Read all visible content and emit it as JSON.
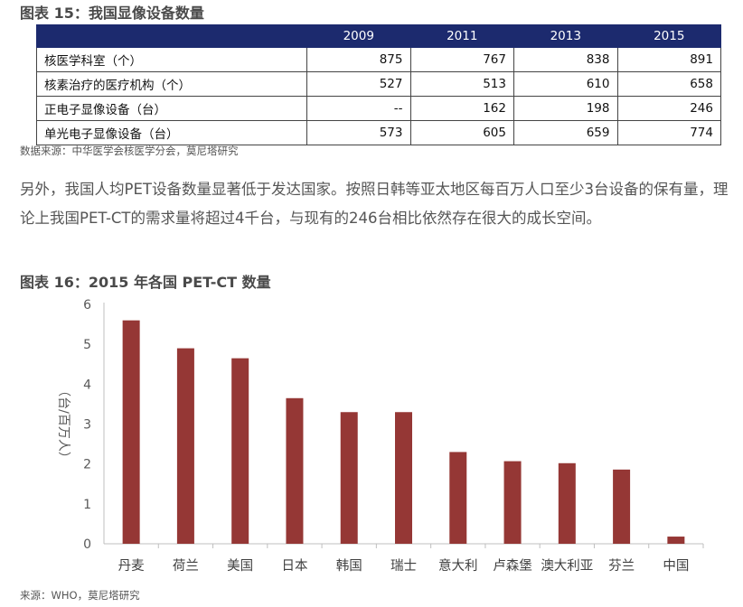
{
  "figure15": {
    "title": "图表 15：我国显像设备数量",
    "columns": [
      "",
      "2009",
      "2011",
      "2013",
      "2015"
    ],
    "rows": [
      {
        "label": "核医学科室（个）",
        "values": [
          "875",
          "767",
          "838",
          "891"
        ]
      },
      {
        "label": "核素治疗的医疗机构（个）",
        "values": [
          "527",
          "513",
          "610",
          "658"
        ]
      },
      {
        "label": "正电子显像设备（台）",
        "values": [
          "--",
          "162",
          "198",
          "246"
        ]
      },
      {
        "label": "单光电子显像设备（台）",
        "values": [
          "573",
          "605",
          "659",
          "774"
        ]
      }
    ],
    "source": "数据来源：中华医学会核医学分会，莫尼塔研究"
  },
  "paragraph": "另外，我国人均PET设备数量显著低于发达国家。按照日韩等亚太地区每百万人口至少3台设备的保有量，理论上我国PET-CT的需求量将超过4千台，与现有的246台相比依然存在很大的成长空间。",
  "figure16": {
    "title": "图表 16：2015 年各国 PET-CT 数量",
    "source": "来源：WHO，莫尼塔研究"
  },
  "chart_data": {
    "type": "bar",
    "categories": [
      "丹麦",
      "荷兰",
      "美国",
      "日本",
      "韩国",
      "瑞士",
      "意大利",
      "卢森堡",
      "澳大利亚",
      "芬兰",
      "中国"
    ],
    "values": [
      5.6,
      4.9,
      4.65,
      3.65,
      3.3,
      3.3,
      2.3,
      2.07,
      2.02,
      1.86,
      0.18
    ],
    "ylabel": "（台/百万人）",
    "ylim": [
      0,
      6
    ],
    "yticks": [
      "0",
      "1",
      "2",
      "3",
      "4",
      "5",
      "6"
    ],
    "grid": false,
    "bar_color": "#953735",
    "axis_color": "#bfbfbf"
  }
}
